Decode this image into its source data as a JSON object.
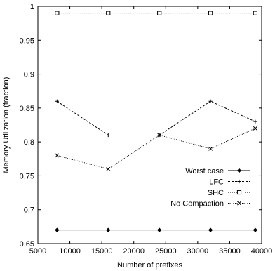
{
  "chart_data": {
    "type": "line",
    "title": "",
    "xlabel": "Number of prefixes",
    "ylabel": "Memory Utilization (fraction)",
    "xlim": [
      5000,
      40000
    ],
    "ylim": [
      0.65,
      1.0
    ],
    "x_ticks": [
      5000,
      10000,
      15000,
      20000,
      25000,
      30000,
      35000,
      40000
    ],
    "y_ticks": [
      0.65,
      0.7,
      0.75,
      0.8,
      0.85,
      0.9,
      0.95,
      1.0
    ],
    "x_tick_labels": [
      "5000",
      "10000",
      "15000",
      "20000",
      "25000",
      "30000",
      "35000",
      "40000"
    ],
    "y_tick_labels": [
      "0.65",
      "0.7",
      "0.75",
      "0.8",
      "0.85",
      "0.9",
      "0.95",
      "1"
    ],
    "grid": false,
    "legend_position": "bottom-right",
    "x": [
      8000,
      16000,
      24000,
      32000,
      39000
    ],
    "series": [
      {
        "name": "Worst case",
        "marker": "diamond",
        "dash": "",
        "values": [
          0.67,
          0.67,
          0.67,
          0.67,
          0.67
        ]
      },
      {
        "name": "LFC",
        "marker": "plus",
        "dash": "3,2",
        "values": [
          0.86,
          0.81,
          0.81,
          0.86,
          0.83
        ]
      },
      {
        "name": "SHC",
        "marker": "square",
        "dash": "1,2",
        "values": [
          0.99,
          0.99,
          0.99,
          0.99,
          0.99
        ]
      },
      {
        "name": "No Compaction",
        "marker": "cross",
        "dash": "1,1.5",
        "values": [
          0.78,
          0.76,
          0.81,
          0.79,
          0.82
        ]
      }
    ]
  }
}
